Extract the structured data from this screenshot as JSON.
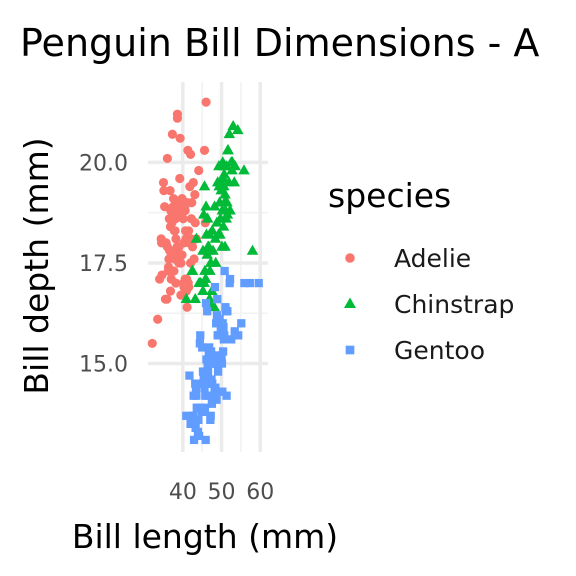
{
  "chart_data": {
    "type": "scatter",
    "title": "Penguin Bill Dimensions - A",
    "xlabel": "Bill length (mm)",
    "ylabel": "Bill depth (mm)",
    "xlim": [
      31,
      62
    ],
    "ylim": [
      12.8,
      22.0
    ],
    "x_ticks": [
      40,
      50,
      60
    ],
    "y_ticks": [
      15.0,
      17.5,
      20.0
    ],
    "x_tick_labels": [
      "40",
      "50",
      "60"
    ],
    "y_tick_labels": [
      "15.0",
      "17.5",
      "20.0"
    ],
    "grid": true,
    "legend": {
      "title": "species",
      "position": "right"
    },
    "series": [
      {
        "name": "Adelie",
        "color": "#F8766D",
        "marker": "circle",
        "x": [
          32.1,
          33.5,
          34.0,
          34.4,
          34.6,
          35.1,
          35.3,
          35.5,
          35.7,
          35.9,
          36.0,
          36.2,
          36.4,
          36.5,
          36.6,
          36.7,
          36.8,
          36.9,
          37.0,
          37.2,
          37.3,
          37.5,
          37.6,
          37.7,
          37.8,
          37.9,
          38.1,
          38.2,
          38.3,
          38.5,
          38.6,
          38.7,
          38.8,
          38.9,
          39.0,
          39.1,
          39.2,
          39.3,
          39.5,
          39.6,
          39.7,
          39.8,
          40.0,
          40.1,
          40.2,
          40.3,
          40.5,
          40.6,
          40.7,
          40.8,
          40.9,
          41.0,
          41.1,
          41.3,
          41.4,
          41.5,
          41.6,
          41.8,
          42.0,
          42.1,
          42.2,
          42.3,
          42.5,
          42.7,
          42.9,
          43.1,
          43.2,
          44.1,
          45.8,
          46.0,
          35.0,
          36.0,
          37.3,
          38.6,
          39.5,
          40.3,
          41.1,
          34.5,
          38.0,
          39.8,
          42.0,
          36.3,
          37.7,
          40.6,
          45.6,
          39.0,
          41.5,
          36.8,
          38.2,
          43.5
        ],
        "y": [
          15.5,
          16.1,
          17.1,
          18.1,
          17.2,
          19.3,
          18.9,
          16.6,
          18.0,
          16.6,
          17.9,
          17.3,
          17.6,
          18.6,
          17.8,
          19.3,
          18.4,
          18.8,
          17.1,
          18.5,
          17.8,
          18.9,
          19.1,
          18.7,
          18.3,
          17.6,
          18.6,
          18.1,
          17.8,
          17.9,
          21.2,
          19.0,
          17.6,
          18.8,
          17.5,
          18.7,
          19.6,
          20.6,
          16.7,
          18.8,
          18.9,
          19.1,
          18.9,
          18.6,
          17.0,
          18.0,
          18.9,
          18.8,
          18.3,
          18.1,
          16.8,
          17.1,
          19.0,
          20.3,
          17.0,
          18.3,
          18.0,
          19.4,
          20.2,
          18.1,
          18.6,
          19.0,
          17.9,
          19.5,
          17.6,
          19.2,
          18.5,
          19.8,
          18.5,
          21.5,
          19.5,
          20.1,
          20.7,
          21.1,
          17.5,
          16.9,
          16.4,
          18.0,
          18.3,
          17.7,
          17.5,
          17.4,
          17.3,
          17.1,
          20.3,
          17.9,
          16.9,
          16.8,
          17.0,
          18.1
        ]
      },
      {
        "name": "Chinstrap",
        "color": "#00BA38",
        "marker": "triangle",
        "x": [
          40.9,
          42.4,
          42.5,
          43.2,
          43.5,
          45.2,
          45.4,
          45.5,
          45.6,
          45.7,
          46.0,
          46.1,
          46.4,
          46.5,
          46.6,
          46.7,
          46.8,
          46.9,
          47.0,
          47.5,
          47.6,
          48.1,
          48.5,
          49.0,
          49.2,
          49.3,
          49.5,
          49.6,
          49.7,
          49.8,
          50.0,
          50.1,
          50.2,
          50.3,
          50.5,
          50.6,
          50.7,
          50.8,
          50.9,
          51.0,
          51.3,
          51.4,
          51.5,
          51.7,
          51.9,
          52.0,
          52.2,
          52.7,
          52.8,
          53.5,
          54.2,
          55.8,
          58.0,
          45.9,
          47.2,
          48.4,
          49.9,
          50.4,
          51.2,
          52.5,
          44.6,
          46.3,
          48.8,
          50.9,
          53.0,
          45.2,
          47.8,
          49.4,
          51.6,
          53.3,
          44.2,
          46.9,
          48.2,
          50.7
        ],
        "y": [
          16.6,
          17.3,
          17.3,
          16.6,
          18.1,
          17.8,
          18.7,
          17.0,
          19.4,
          17.3,
          18.9,
          18.2,
          18.6,
          17.9,
          17.8,
          17.9,
          16.5,
          16.6,
          17.3,
          16.8,
          18.3,
          16.4,
          17.5,
          19.5,
          18.2,
          19.9,
          19.0,
          18.2,
          18.6,
          19.5,
          19.5,
          17.9,
          18.8,
          20.0,
          18.4,
          19.4,
          19.7,
          19.0,
          17.9,
          18.8,
          19.9,
          19.0,
          18.7,
          20.3,
          19.5,
          20.7,
          18.8,
          19.8,
          20.0,
          19.9,
          20.8,
          19.8,
          17.8,
          17.1,
          17.5,
          18.1,
          19.3,
          19.6,
          18.6,
          20.0,
          17.0,
          17.7,
          18.5,
          19.2,
          20.9,
          16.8,
          17.8,
          19.4,
          20.3,
          19.5,
          17.0,
          18.2,
          18.9,
          19.9
        ]
      },
      {
        "name": "Gentoo",
        "color": "#619CFF",
        "marker": "square",
        "x": [
          40.9,
          41.7,
          42.0,
          42.6,
          42.7,
          42.8,
          42.9,
          43.2,
          43.3,
          43.4,
          43.5,
          43.6,
          43.8,
          44.0,
          44.4,
          44.5,
          44.9,
          45.0,
          45.1,
          45.2,
          45.3,
          45.4,
          45.5,
          45.7,
          45.8,
          46.1,
          46.2,
          46.4,
          46.5,
          46.6,
          46.8,
          46.9,
          47.2,
          47.3,
          47.4,
          47.5,
          47.6,
          47.7,
          47.8,
          48.1,
          48.2,
          48.4,
          48.5,
          48.6,
          48.7,
          48.8,
          49.0,
          49.1,
          49.2,
          49.3,
          49.5,
          49.6,
          49.8,
          50.0,
          50.1,
          50.2,
          50.4,
          50.5,
          50.7,
          50.8,
          51.1,
          51.3,
          51.5,
          52.1,
          52.2,
          52.5,
          53.4,
          54.3,
          55.1,
          55.9,
          57.3,
          59.6,
          44.7,
          45.6,
          46.7,
          47.1,
          48.0,
          48.9,
          50.3,
          42.1,
          43.9,
          46.0,
          47.9,
          49.4,
          51.0,
          44.2,
          46.3,
          48.3,
          50.6,
          45.9
        ],
        "y": [
          13.7,
          14.7,
          13.5,
          13.7,
          13.7,
          14.2,
          13.1,
          14.5,
          13.4,
          14.4,
          14.2,
          13.9,
          13.9,
          13.6,
          15.5,
          15.7,
          13.8,
          15.4,
          14.5,
          14.8,
          13.8,
          14.6,
          14.5,
          13.9,
          14.2,
          15.1,
          14.5,
          15.0,
          14.8,
          14.2,
          15.4,
          14.6,
          13.7,
          15.3,
          14.6,
          14.0,
          14.5,
          15.0,
          15.0,
          15.1,
          14.3,
          14.4,
          15.0,
          16.0,
          14.1,
          16.2,
          15.7,
          14.8,
          15.2,
          15.7,
          16.1,
          16.0,
          15.9,
          15.2,
          15.0,
          14.3,
          15.3,
          15.9,
          15.7,
          17.3,
          16.3,
          14.2,
          16.3,
          17.0,
          17.1,
          15.6,
          15.8,
          15.7,
          16.0,
          17.0,
          17.0,
          17.0,
          13.9,
          14.4,
          15.3,
          13.6,
          14.2,
          16.6,
          16.0,
          13.5,
          13.3,
          16.5,
          15.0,
          14.3,
          16.4,
          13.2,
          16.3,
          16.9,
          15.6,
          13.1
        ]
      }
    ]
  }
}
